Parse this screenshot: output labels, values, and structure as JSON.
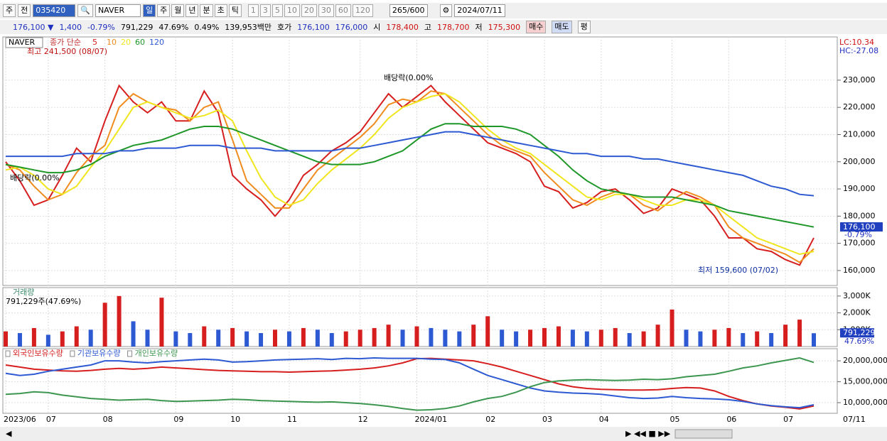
{
  "toolbar": {
    "market": "주",
    "prev": "전",
    "code": "035420",
    "name": "NAVER",
    "periods": [
      "일",
      "주",
      "월",
      "년",
      "분",
      "초",
      "틱"
    ],
    "intervals": [
      "1",
      "3",
      "5",
      "10",
      "20",
      "30",
      "60",
      "120"
    ],
    "count": "265/600",
    "date": "2024/07/11"
  },
  "infobar": {
    "price": "176,100 ▼",
    "change": "1,400",
    "change_pct": "-0.79%",
    "volume": "791,229",
    "volume_pct": "47.69%",
    "turnover": "0.49%",
    "amount": "139,953백만",
    "quote_label": "호가",
    "ask": "176,100",
    "bid": "176,000",
    "open_label": "시",
    "open": "178,400",
    "high_label": "고",
    "high": "178,700",
    "low_label": "저",
    "low": "175,300",
    "buy": "매수",
    "sell": "매도",
    "eval": "평"
  },
  "chart_data": [
    {
      "type": "line",
      "title": "NAVER",
      "legend_label": "종가 단순",
      "grid": true,
      "series": [
        {
          "name": "5",
          "color": "#d71e1e",
          "values": [
            200000,
            193000,
            184000,
            186000,
            195000,
            205000,
            200000,
            215000,
            228000,
            222000,
            218000,
            222000,
            215000,
            215000,
            226000,
            218000,
            195000,
            190000,
            186000,
            180000,
            186000,
            195000,
            199000,
            204000,
            207000,
            211000,
            218000,
            225000,
            220000,
            224000,
            228000,
            222000,
            217000,
            212000,
            207000,
            205000,
            203000,
            200000,
            191000,
            189000,
            183000,
            185000,
            189000,
            190000,
            186000,
            181000,
            183000,
            190000,
            188000,
            186000,
            180000,
            172000,
            172000,
            168000,
            167000,
            164000,
            162000,
            172000
          ]
        },
        {
          "name": "10",
          "color": "#f08c1e",
          "values": [
            199000,
            197000,
            191000,
            186000,
            188000,
            196000,
            202000,
            206000,
            220000,
            225000,
            222000,
            220000,
            219000,
            215000,
            220000,
            222000,
            208000,
            193000,
            188000,
            183000,
            183000,
            190000,
            197000,
            201000,
            205000,
            209000,
            214000,
            221000,
            223000,
            222000,
            226000,
            225000,
            220000,
            215000,
            210000,
            206000,
            204000,
            202000,
            196000,
            191000,
            186000,
            184000,
            187000,
            189000,
            188000,
            184000,
            182000,
            186000,
            189000,
            187000,
            184000,
            176000,
            172000,
            170000,
            168000,
            166000,
            163000,
            168000
          ]
        },
        {
          "name": "20",
          "color": "#f0e61e",
          "values": [
            197000,
            198000,
            195000,
            190000,
            188000,
            191000,
            198000,
            204000,
            212000,
            220000,
            222000,
            220000,
            218000,
            216000,
            217000,
            219000,
            215000,
            204000,
            194000,
            187000,
            184000,
            186000,
            192000,
            197000,
            201000,
            205000,
            210000,
            216000,
            220000,
            222000,
            224000,
            225000,
            222000,
            217000,
            212000,
            208000,
            205000,
            203000,
            199000,
            195000,
            191000,
            187000,
            186000,
            188000,
            188000,
            186000,
            184000,
            184000,
            186000,
            186000,
            184000,
            180000,
            176000,
            172000,
            170000,
            168000,
            166000,
            167000
          ]
        },
        {
          "name": "60",
          "color": "#1e9628",
          "values": [
            199000,
            198000,
            197000,
            196000,
            196000,
            197000,
            199000,
            202000,
            204000,
            206000,
            207000,
            208000,
            210000,
            212000,
            213000,
            213000,
            212000,
            210000,
            208000,
            206000,
            204000,
            202000,
            200000,
            199000,
            199000,
            199000,
            200000,
            202000,
            204000,
            208000,
            212000,
            214000,
            214000,
            213000,
            213000,
            213000,
            212000,
            210000,
            206000,
            202000,
            197000,
            193000,
            190000,
            189000,
            188000,
            187000,
            187000,
            187000,
            186000,
            185000,
            184000,
            182000,
            181000,
            180000,
            179000,
            178000,
            177000,
            176000
          ]
        },
        {
          "name": "120",
          "color": "#2d5ad2",
          "values": [
            202000,
            202000,
            202000,
            202000,
            202000,
            203000,
            203000,
            203000,
            204000,
            204000,
            205000,
            205000,
            205000,
            206000,
            206000,
            206000,
            205000,
            205000,
            205000,
            204000,
            204000,
            204000,
            204000,
            204000,
            205000,
            205000,
            206000,
            207000,
            208000,
            209000,
            210000,
            211000,
            211000,
            210000,
            209000,
            208000,
            207000,
            206000,
            205000,
            204000,
            203000,
            203000,
            202000,
            202000,
            202000,
            201000,
            201000,
            200000,
            199000,
            198000,
            197000,
            196000,
            195000,
            193000,
            191000,
            190000,
            188000,
            187500
          ]
        }
      ],
      "ylim": [
        154500,
        245900
      ],
      "yticks": [
        {
          "value": 160000,
          "label": "160,000"
        },
        {
          "value": 170000,
          "label": "170,000"
        },
        {
          "value": 180000,
          "label": "180,000"
        },
        {
          "value": 190000,
          "label": "190,000"
        },
        {
          "value": 200000,
          "label": "200,000"
        },
        {
          "value": 210000,
          "label": "210,000"
        },
        {
          "value": 220000,
          "label": "220,000"
        },
        {
          "value": 230000,
          "label": "230,000"
        }
      ],
      "last_value_label": "176,100",
      "last_change_label": "-0.79%",
      "lc_label": "LC:10.34",
      "hc_label": "HC:-27.08",
      "annotations": [
        "최고 241,500 (08/07)",
        "최저 159,600 (07/02)",
        "배당락(0.00%",
        "배당락(0.00%"
      ]
    },
    {
      "type": "bar",
      "title": "거래량",
      "subtitle": "791,229주(47.69%)",
      "up_color": "#d71e1e",
      "down_color": "#2d5ad2",
      "values": [
        900000,
        800000,
        1100000,
        700000,
        900000,
        1200000,
        1000000,
        2600000,
        3000000,
        1500000,
        1000000,
        2900000,
        900000,
        800000,
        1200000,
        1000000,
        1100000,
        900000,
        800000,
        1000000,
        900000,
        1100000,
        1000000,
        800000,
        900000,
        1000000,
        1100000,
        1300000,
        1000000,
        1200000,
        1100000,
        1000000,
        900000,
        1300000,
        1800000,
        1000000,
        900000,
        1000000,
        1100000,
        1200000,
        1000000,
        900000,
        1000000,
        1100000,
        800000,
        900000,
        1300000,
        2200000,
        1000000,
        900000,
        1000000,
        1100000,
        800000,
        900000,
        800000,
        1300000,
        1600000,
        791229
      ],
      "ylim": [
        0,
        3500000
      ],
      "yticks": [
        {
          "value": 1000000,
          "label": "1,000K"
        },
        {
          "value": 2000000,
          "label": "2,000K"
        },
        {
          "value": 3000000,
          "label": "3,000K"
        }
      ],
      "last_value_label": "791,229",
      "last_pct_label": "47.69%"
    },
    {
      "type": "line",
      "current_date": "07/11",
      "categories": [
        "2023/06",
        null,
        null,
        "07",
        null,
        null,
        null,
        "08",
        null,
        null,
        null,
        null,
        "09",
        null,
        null,
        null,
        "10",
        null,
        null,
        null,
        "11",
        null,
        null,
        null,
        null,
        "12",
        null,
        null,
        null,
        "2024/01",
        null,
        null,
        null,
        null,
        "02",
        null,
        null,
        null,
        "03",
        null,
        null,
        null,
        "04",
        null,
        null,
        null,
        null,
        "05",
        null,
        null,
        null,
        "06",
        null,
        null,
        null,
        "07",
        null,
        null
      ],
      "series": [
        {
          "name": "외국인보유수량",
          "color": "#d71e1e",
          "values": [
            19000000,
            18500000,
            18000000,
            17800000,
            17600000,
            17500000,
            17700000,
            18000000,
            18200000,
            18000000,
            18200000,
            18500000,
            18300000,
            18100000,
            17900000,
            17700000,
            17600000,
            17500000,
            17400000,
            17400000,
            17300000,
            17400000,
            17500000,
            17600000,
            17800000,
            18000000,
            18300000,
            18800000,
            19500000,
            20500000,
            20600000,
            20400000,
            20200000,
            20000000,
            19300000,
            18500000,
            17500000,
            16500000,
            15500000,
            14500000,
            13800000,
            13400000,
            13200000,
            13100000,
            13000000,
            13000000,
            13100000,
            13400000,
            13600000,
            13500000,
            12800000,
            11500000,
            10500000,
            9700000,
            9200000,
            8900000,
            8500000,
            9200000
          ]
        },
        {
          "name": "기관보유수량",
          "color": "#2d5ad2",
          "values": [
            17000000,
            16500000,
            16800000,
            17500000,
            18000000,
            18500000,
            19000000,
            20000000,
            20000000,
            19700000,
            19500000,
            19800000,
            20000000,
            20200000,
            20400000,
            20200000,
            19700000,
            19800000,
            20000000,
            20200000,
            20300000,
            20400000,
            20500000,
            20300000,
            20600000,
            20500000,
            20700000,
            20600000,
            20600000,
            20600000,
            20400000,
            20300000,
            19500000,
            18000000,
            16500000,
            15500000,
            14500000,
            13500000,
            12800000,
            12500000,
            12300000,
            12200000,
            12000000,
            11600000,
            11200000,
            11000000,
            11100000,
            11500000,
            11200000,
            11000000,
            10900000,
            10700000,
            10300000,
            9700000,
            9300000,
            9000000,
            8800000,
            9500000
          ]
        },
        {
          "name": "개인보유수량",
          "color": "#3c9650",
          "values": [
            12000000,
            12200000,
            12600000,
            12400000,
            11800000,
            11400000,
            11000000,
            10800000,
            10600000,
            10700000,
            10800000,
            10500000,
            10300000,
            10400000,
            10500000,
            10600000,
            10800000,
            10700000,
            10500000,
            10400000,
            10300000,
            10200000,
            10100000,
            10200000,
            10000000,
            9800000,
            9500000,
            9100000,
            8600000,
            8200000,
            8300000,
            8600000,
            9200000,
            10200000,
            11000000,
            11500000,
            12500000,
            13800000,
            14800000,
            15200000,
            15400000,
            15500000,
            15400000,
            15300000,
            15400000,
            15600000,
            15500000,
            15700000,
            16200000,
            16500000,
            16800000,
            17500000,
            18300000,
            18800000,
            19500000,
            20100000,
            20700000,
            19600000
          ]
        }
      ],
      "ylim": [
        7460000,
        22900000
      ],
      "yticks": [
        {
          "value": 10000000,
          "label": "10,000,000"
        },
        {
          "value": 15000000,
          "label": "15,000,000"
        },
        {
          "value": 20000000,
          "label": "20,000,000"
        }
      ]
    }
  ]
}
